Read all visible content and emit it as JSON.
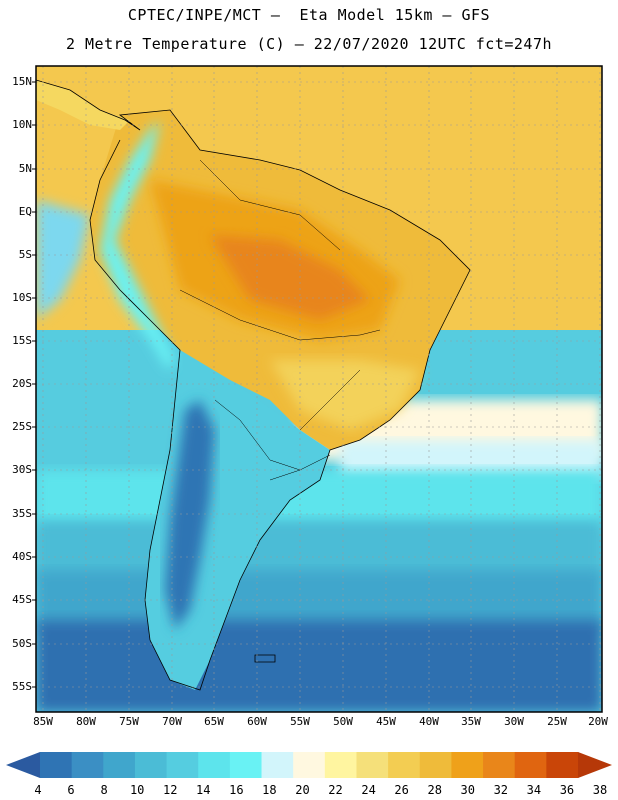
{
  "header": {
    "title_line1": "CPTEC/INPE/MCT –  Eta Model 15km – GFS",
    "title_line2": "2 Metre Temperature (C) – 22/07/2020 12UTC fct=247h"
  },
  "map": {
    "lat_labels": [
      "15N",
      "10N",
      "5N",
      "EQ",
      "5S",
      "10S",
      "15S",
      "20S",
      "25S",
      "30S",
      "35S",
      "40S",
      "45S",
      "50S",
      "55S"
    ],
    "lon_labels": [
      "85W",
      "80W",
      "75W",
      "70W",
      "65W",
      "60W",
      "55W",
      "50W",
      "45W",
      "40W",
      "35W",
      "30W",
      "25W",
      "20W"
    ],
    "regions": [
      {
        "name": "north-atlantic",
        "temp": 28,
        "color": "#f4c84e"
      },
      {
        "name": "north-america-land",
        "temp": 26,
        "color": "#f5d860"
      },
      {
        "name": "amazon-interior",
        "temp": 32,
        "color": "#eda316"
      },
      {
        "name": "amazon-core",
        "temp": 34,
        "color": "#e8851a"
      },
      {
        "name": "brazil-south-east",
        "temp": 26,
        "color": "#f3d25a"
      },
      {
        "name": "andes-high",
        "temp": 8,
        "color": "#3a88c0"
      },
      {
        "name": "south-pacific",
        "temp": 14,
        "color": "#56ccdf"
      },
      {
        "name": "patagonia-sea",
        "temp": 6,
        "color": "#2f6fb0"
      },
      {
        "name": "south-atlantic",
        "temp": 18,
        "color": "#7dd8ef"
      }
    ]
  },
  "colorbar": {
    "labels": [
      "4",
      "6",
      "8",
      "10",
      "12",
      "14",
      "16",
      "18",
      "20",
      "22",
      "24",
      "26",
      "28",
      "30",
      "32",
      "34",
      "36",
      "38"
    ],
    "colors": [
      "#2b5aa0",
      "#2f74b4",
      "#3b8fc4",
      "#40a6cc",
      "#4bbcd6",
      "#55cde0",
      "#5de4ec",
      "#69f2f4",
      "#d2f5fb",
      "#fff8e0",
      "#fff5a0",
      "#f5e07a",
      "#f3cd52",
      "#efbb3a",
      "#efa11a",
      "#e9861a",
      "#e06510",
      "#c94508",
      "#b63808"
    ]
  }
}
